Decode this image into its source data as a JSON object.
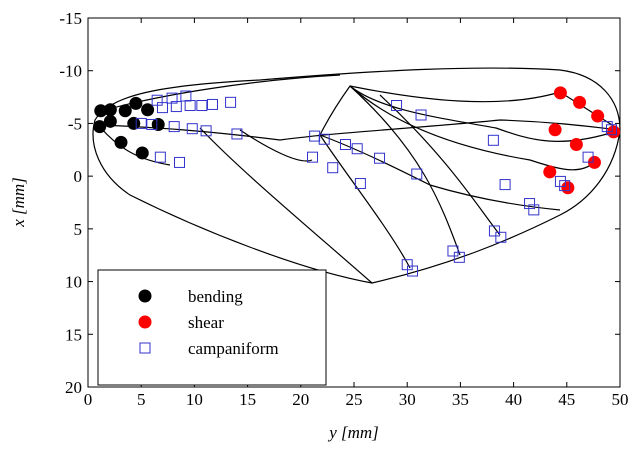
{
  "chart_data": {
    "type": "scatter",
    "xlabel": "y [mm]",
    "ylabel": "x [mm]",
    "xlim": [
      0,
      50
    ],
    "xticks": [
      0,
      5,
      10,
      15,
      20,
      25,
      30,
      35,
      40,
      45,
      50
    ],
    "ylim": [
      -15,
      20
    ],
    "yticks": [
      -15,
      -10,
      -5,
      0,
      5,
      10,
      15,
      20
    ],
    "y_inverted": true,
    "legend": "lower left",
    "series": [
      {
        "name": "bending",
        "color": "#000000",
        "marker": "filled-circle",
        "x": [
          1.2,
          2.1,
          3.5,
          4.5,
          5.6,
          1.1,
          2.1,
          4.3,
          6.6,
          3.1,
          5.1
        ],
        "values": [
          -6.2,
          -6.3,
          -6.2,
          -6.9,
          -6.3,
          -4.7,
          -5.2,
          -5.0,
          -4.9,
          -3.2,
          -2.2
        ]
      },
      {
        "name": "shear",
        "color": "#ff0000",
        "marker": "filled-circle",
        "x": [
          44.4,
          46.2,
          47.9,
          49.4,
          43.9,
          45.9,
          47.6,
          43.4,
          45.1
        ],
        "values": [
          -7.9,
          -7.0,
          -5.7,
          -4.2,
          -4.4,
          -3.0,
          -1.3,
          -0.4,
          1.1
        ]
      },
      {
        "name": "campaniform",
        "color": "#3333cc",
        "marker": "open-square",
        "x": [
          6.5,
          7.9,
          9.2,
          7.0,
          8.3,
          9.6,
          10.7,
          11.7,
          13.4,
          5.0,
          6.0,
          8.1,
          9.8,
          11.1,
          14.0,
          6.8,
          8.6,
          21.3,
          22.2,
          21.1,
          23.0,
          24.2,
          25.3,
          27.4,
          25.6,
          29.0,
          31.3,
          30.9,
          38.1,
          39.2,
          41.5,
          41.9,
          44.4,
          44.8,
          47.0,
          48.8,
          49.2,
          38.2,
          38.8,
          30.0,
          30.5,
          34.3,
          34.9
        ],
        "values": [
          -7.2,
          -7.4,
          -7.6,
          -6.5,
          -6.6,
          -6.7,
          -6.7,
          -6.8,
          -7.0,
          -5.0,
          -4.9,
          -4.7,
          -4.5,
          -4.3,
          -4.0,
          -1.8,
          -1.3,
          -3.8,
          -3.5,
          -1.8,
          -0.8,
          -3.0,
          -2.6,
          -1.7,
          0.7,
          -6.7,
          -5.8,
          -0.2,
          -3.4,
          0.8,
          2.6,
          3.2,
          0.5,
          0.9,
          -1.8,
          -4.7,
          -4.4,
          5.2,
          5.8,
          8.4,
          9.0,
          7.1,
          7.7
        ]
      }
    ]
  }
}
